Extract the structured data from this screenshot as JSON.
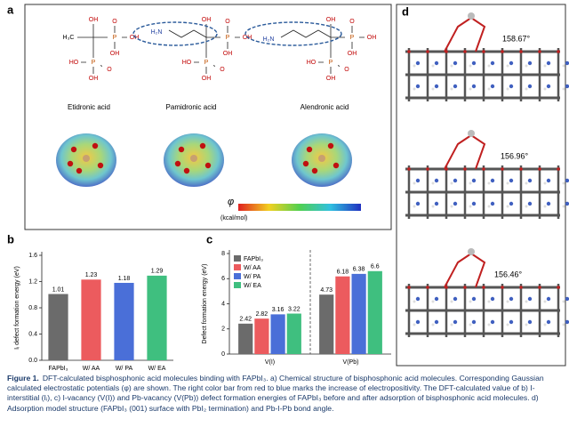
{
  "panel_labels": [
    "a",
    "b",
    "c",
    "d"
  ],
  "molecules": [
    {
      "name": "Etidronic acid",
      "tail": "H₃C",
      "core": [
        "OH",
        "P",
        "O",
        "OH",
        "OH",
        "P",
        "O",
        "HO",
        "OH"
      ]
    },
    {
      "name": "Pamidronic acid",
      "tail": "H₂N",
      "core": [
        "OH",
        "P",
        "O",
        "OH",
        "OH",
        "P",
        "O",
        "HO",
        "OH"
      ]
    },
    {
      "name": "Alendronic acid",
      "tail": "H₂N",
      "core": [
        "OH",
        "P",
        "O",
        "OH",
        "OH",
        "P",
        "O",
        "HO",
        "OH"
      ]
    }
  ],
  "colorbar": {
    "symbol": "φ",
    "unit": "(kcal/mol)"
  },
  "structures": [
    {
      "angle": "158.67°"
    },
    {
      "angle": "156.96°"
    },
    {
      "angle": "156.46°"
    }
  ],
  "chart_data": [
    {
      "type": "bar",
      "ylabel": "Iᵢ defect formation energy (eV)",
      "categories": [
        "FAPbI₃",
        "W/ AA",
        "W/ PA",
        "W/ EA"
      ],
      "values": [
        1.01,
        1.23,
        1.18,
        1.29
      ],
      "colors": [
        "#6b6b6b",
        "#ec5b5e",
        "#4a6fd8",
        "#3fbf7f"
      ],
      "ylim": [
        0.0,
        1.6
      ],
      "yticks": [
        {
          "value": 0,
          "label": "0.0"
        },
        {
          "value": 0.4,
          "label": "0.4"
        },
        {
          "value": 0.8,
          "label": "0.8"
        },
        {
          "value": 1.2,
          "label": "1.2"
        },
        {
          "value": 1.6,
          "label": "1.6"
        }
      ]
    },
    {
      "type": "grouped_bar",
      "ylabel": "Defect formation energy (eV)",
      "categories": [
        "V(I)",
        "V(Pb)"
      ],
      "series": [
        {
          "name": "FAPbI₃",
          "color": "#6b6b6b",
          "values": [
            2.42,
            4.73
          ]
        },
        {
          "name": "W/ AA",
          "color": "#ec5b5e",
          "values": [
            2.82,
            6.18
          ]
        },
        {
          "name": "W/ PA",
          "color": "#4a6fd8",
          "values": [
            3.16,
            6.38
          ]
        },
        {
          "name": "W/ EA",
          "color": "#3fbf7f",
          "values": [
            3.22,
            6.6
          ]
        }
      ],
      "ylim": [
        0,
        8
      ],
      "yticks": [
        0,
        2,
        4,
        6,
        8
      ],
      "legend": "upper left"
    }
  ],
  "caption": {
    "label": "Figure 1.",
    "text": "DFT-calculated bisphosphonic acid molecules binding with FAPbI₃. a) Chemical structure of bisphosphonic acid molecules. Corresponding Gaussian calculated electrostatic potentials (φ) are shown. The right color bar from red to blue marks the increase of electropositivity. The DFT-calculated value of b) I-interstitial (Iᵢ), c) I-vacancy (V(I)) and Pb-vacancy (V(Pb)) defect formation energies of FAPbI₃ before and after adsorption of bisphosphonic acid molecules. d) Adsorption model structure (FAPbI₃ (001) surface with PbI₂ termination) and Pb-I-Pb bond angle."
  }
}
